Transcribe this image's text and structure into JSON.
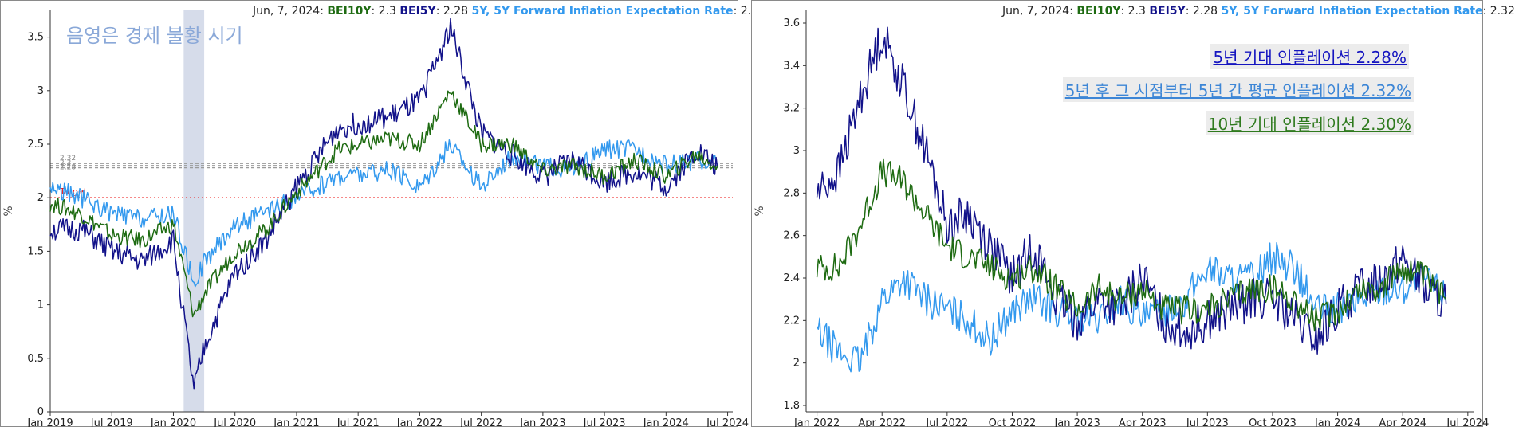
{
  "colors": {
    "bei10y": "#1e6b12",
    "bei5y": "#12128a",
    "fwd": "#3399ee",
    "recession": "#d6dcea",
    "target": "#ee1111",
    "ref": "#999999",
    "shade_label": "#8aa8d8"
  },
  "header": {
    "date": "Jun, 7, 2024:",
    "bei10y_label": "BEI10Y",
    "bei10y_value": ": 2.3",
    "bei5y_label": "BEI5Y",
    "bei5y_value": ": 2.28",
    "fwd_label": "5Y, 5Y Forward Inflation Expectation Rate",
    "fwd_value": ": 2.32"
  },
  "chart_data": [
    {
      "type": "line",
      "ylabel": "%",
      "ylim": [
        0,
        3.75
      ],
      "yticks": [
        "0",
        "0.5",
        "1",
        "1.5",
        "2",
        "2.5",
        "3",
        "3.5"
      ],
      "xticks": [
        "Jan 2019",
        "Jul 2019",
        "Jan 2020",
        "Jul 2020",
        "Jan 2021",
        "Jul 2021",
        "Jan 2022",
        "Jul 2022",
        "Jan 2023",
        "Jul 2023",
        "Jan 2024",
        "Jul 2024"
      ],
      "shaded_region": {
        "label": "음영은 경제 불황 시기",
        "start": "2020-02",
        "end": "2020-04"
      },
      "target_line": {
        "label": "Target",
        "value": 2.0
      },
      "reference_lines": {
        "labels": [
          "2.32",
          "2.3",
          "2.28"
        ],
        "values": [
          2.32,
          2.3,
          2.28
        ]
      },
      "series": [
        {
          "name": "BEI10Y",
          "x": [
            "2019-01",
            "2019-04",
            "2019-07",
            "2019-10",
            "2020-01",
            "2020-03",
            "2020-04",
            "2020-07",
            "2020-10",
            "2021-01",
            "2021-05",
            "2021-10",
            "2022-01",
            "2022-04",
            "2022-07",
            "2022-10",
            "2023-01",
            "2023-04",
            "2023-07",
            "2023-10",
            "2024-01",
            "2024-04",
            "2024-06"
          ],
          "values": [
            1.95,
            1.85,
            1.65,
            1.6,
            1.75,
            0.9,
            1.1,
            1.5,
            1.7,
            2.05,
            2.45,
            2.55,
            2.5,
            3.0,
            2.5,
            2.5,
            2.25,
            2.3,
            2.2,
            2.35,
            2.2,
            2.4,
            2.3
          ]
        },
        {
          "name": "BEI5Y",
          "x": [
            "2019-01",
            "2019-04",
            "2019-07",
            "2019-10",
            "2020-01",
            "2020-03",
            "2020-04",
            "2020-07",
            "2020-10",
            "2021-01",
            "2021-05",
            "2021-10",
            "2022-01",
            "2022-04",
            "2022-07",
            "2022-10",
            "2023-01",
            "2023-04",
            "2023-07",
            "2023-10",
            "2024-01",
            "2024-04",
            "2024-06"
          ],
          "values": [
            1.7,
            1.7,
            1.5,
            1.4,
            1.6,
            0.2,
            0.6,
            1.3,
            1.6,
            2.1,
            2.65,
            2.75,
            2.9,
            3.6,
            2.6,
            2.4,
            2.2,
            2.35,
            2.15,
            2.25,
            2.1,
            2.45,
            2.28
          ]
        },
        {
          "name": "5Y, 5Y Forward Inflation Expectation Rate",
          "x": [
            "2019-01",
            "2019-04",
            "2019-07",
            "2019-10",
            "2020-01",
            "2020-03",
            "2020-04",
            "2020-07",
            "2020-10",
            "2021-01",
            "2021-05",
            "2021-10",
            "2022-01",
            "2022-04",
            "2022-07",
            "2022-10",
            "2023-01",
            "2023-04",
            "2023-07",
            "2023-10",
            "2024-01",
            "2024-04",
            "2024-06"
          ],
          "values": [
            2.1,
            2.0,
            1.85,
            1.8,
            1.85,
            1.2,
            1.4,
            1.75,
            1.85,
            2.0,
            2.2,
            2.25,
            2.1,
            2.5,
            2.1,
            2.4,
            2.3,
            2.25,
            2.45,
            2.45,
            2.3,
            2.35,
            2.32
          ]
        }
      ]
    },
    {
      "type": "line",
      "ylabel": "%",
      "ylim": [
        1.77,
        3.66
      ],
      "yticks": [
        "1.8",
        "2",
        "2.2",
        "2.4",
        "2.6",
        "2.8",
        "3",
        "3.2",
        "3.4",
        "3.6"
      ],
      "xticks": [
        "Jan 2022",
        "Apr 2022",
        "Jul 2022",
        "Oct 2022",
        "Jan 2023",
        "Apr 2023",
        "Jul 2023",
        "Oct 2023",
        "Jan 2024",
        "Apr 2024",
        "Jul 2024"
      ],
      "annotations": [
        {
          "text": "5년 기대 인플레이션 2.28%",
          "series": "BEI5Y"
        },
        {
          "text": "5년 후 그 시점부터 5년 간 평균 인플레이션 2.32%",
          "series": "5Y, 5Y Forward Inflation Expectation Rate"
        },
        {
          "text": "10년 기대 인플레이션 2.30%",
          "series": "BEI10Y"
        }
      ],
      "series": [
        {
          "name": "BEI10Y",
          "x": [
            "2022-01",
            "2022-02",
            "2022-03",
            "2022-04",
            "2022-05",
            "2022-06",
            "2022-07",
            "2022-08",
            "2022-09",
            "2022-10",
            "2022-11",
            "2022-12",
            "2023-01",
            "2023-02",
            "2023-03",
            "2023-04",
            "2023-05",
            "2023-06",
            "2023-07",
            "2023-08",
            "2023-09",
            "2023-10",
            "2023-11",
            "2023-12",
            "2024-01",
            "2024-02",
            "2024-03",
            "2024-04",
            "2024-05",
            "2024-06"
          ],
          "values": [
            2.45,
            2.45,
            2.65,
            2.9,
            2.85,
            2.7,
            2.55,
            2.5,
            2.45,
            2.4,
            2.45,
            2.35,
            2.25,
            2.35,
            2.3,
            2.35,
            2.25,
            2.25,
            2.25,
            2.3,
            2.35,
            2.35,
            2.3,
            2.2,
            2.25,
            2.35,
            2.35,
            2.45,
            2.4,
            2.3
          ]
        },
        {
          "name": "BEI5Y",
          "x": [
            "2022-01",
            "2022-02",
            "2022-03",
            "2022-04",
            "2022-05",
            "2022-06",
            "2022-07",
            "2022-08",
            "2022-09",
            "2022-10",
            "2022-11",
            "2022-12",
            "2023-01",
            "2023-02",
            "2023-03",
            "2023-04",
            "2023-05",
            "2023-06",
            "2023-07",
            "2023-08",
            "2023-09",
            "2023-10",
            "2023-11",
            "2023-12",
            "2024-01",
            "2024-02",
            "2024-03",
            "2024-04",
            "2024-05",
            "2024-06"
          ],
          "values": [
            2.8,
            2.9,
            3.25,
            3.55,
            3.3,
            3.0,
            2.65,
            2.7,
            2.55,
            2.4,
            2.55,
            2.3,
            2.2,
            2.3,
            2.25,
            2.4,
            2.2,
            2.15,
            2.2,
            2.25,
            2.3,
            2.3,
            2.2,
            2.1,
            2.25,
            2.35,
            2.4,
            2.5,
            2.35,
            2.28
          ]
        },
        {
          "name": "5Y, 5Y Forward Inflation Expectation Rate",
          "x": [
            "2022-01",
            "2022-02",
            "2022-03",
            "2022-04",
            "2022-05",
            "2022-06",
            "2022-07",
            "2022-08",
            "2022-09",
            "2022-10",
            "2022-11",
            "2022-12",
            "2023-01",
            "2023-02",
            "2023-03",
            "2023-04",
            "2023-05",
            "2023-06",
            "2023-07",
            "2023-08",
            "2023-09",
            "2023-10",
            "2023-11",
            "2023-12",
            "2024-01",
            "2024-02",
            "2024-03",
            "2024-04",
            "2024-05",
            "2024-06"
          ],
          "values": [
            2.15,
            2.05,
            2.0,
            2.3,
            2.4,
            2.3,
            2.25,
            2.2,
            2.1,
            2.25,
            2.3,
            2.25,
            2.2,
            2.2,
            2.3,
            2.2,
            2.25,
            2.3,
            2.45,
            2.4,
            2.4,
            2.5,
            2.45,
            2.25,
            2.25,
            2.3,
            2.35,
            2.35,
            2.4,
            2.32
          ]
        }
      ]
    }
  ]
}
